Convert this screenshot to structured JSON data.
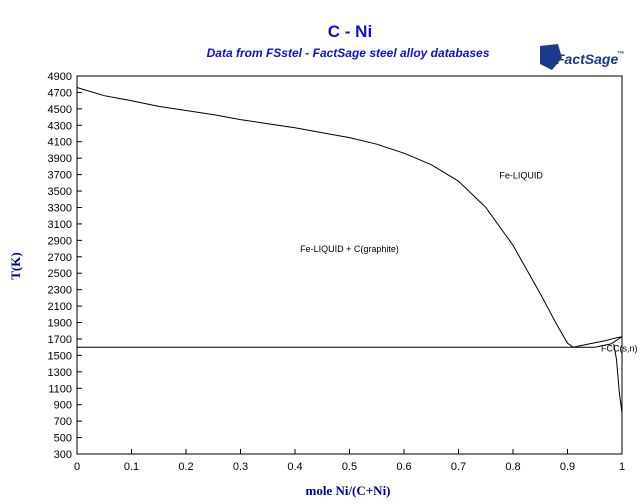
{
  "header": {
    "title": "C - Ni",
    "subtitle": "Data from FSstel - FactSage steel alloy databases",
    "logo": "FactSage",
    "logo_mark": "™"
  },
  "colors": {
    "title": "#1010d0",
    "axis_label": "#0000a0",
    "logo": "#1a3a8c",
    "line": "#000000"
  },
  "chart_data": {
    "type": "line",
    "title": "C - Ni",
    "subtitle": "Data from FSstel - FactSage steel alloy databases",
    "xlabel": "mole Ni/(C+Ni)",
    "ylabel": "T(K)",
    "xlim": [
      0,
      1
    ],
    "ylim": [
      300,
      4900
    ],
    "xticks": [
      0,
      0.1,
      0.2,
      0.3,
      0.4,
      0.5,
      0.6,
      0.7,
      0.8,
      0.9,
      1
    ],
    "xtick_labels": [
      "0",
      "0.1",
      "0.2",
      "0.3",
      "0.4",
      "0.5",
      "0.6",
      "0.7",
      "0.8",
      "0.9",
      "1"
    ],
    "yticks": [
      300,
      500,
      700,
      900,
      1100,
      1300,
      1500,
      1700,
      1900,
      2100,
      2300,
      2500,
      2700,
      2900,
      3100,
      3300,
      3500,
      3700,
      3900,
      4100,
      4300,
      4500,
      4700,
      4900
    ],
    "grid": false,
    "series": [
      {
        "x": [
          0,
          0.05,
          0.1,
          0.15,
          0.2,
          0.25,
          0.3,
          0.35,
          0.4,
          0.45,
          0.5,
          0.55,
          0.6,
          0.65,
          0.7,
          0.75,
          0.8,
          0.85,
          0.88,
          0.9,
          0.91
        ],
        "y": [
          4760,
          4660,
          4600,
          4530,
          4480,
          4430,
          4370,
          4320,
          4270,
          4210,
          4150,
          4070,
          3960,
          3820,
          3620,
          3300,
          2840,
          2250,
          1880,
          1650,
          1600
        ]
      },
      {
        "x": [
          0,
          0.91
        ],
        "y": [
          1600,
          1600
        ]
      },
      {
        "x": [
          0.91,
          0.94,
          0.97,
          0.99,
          1.0
        ],
        "y": [
          1600,
          1640,
          1680,
          1715,
          1728
        ]
      },
      {
        "x": [
          0.91,
          0.95,
          0.98,
          1.0
        ],
        "y": [
          1600,
          1600,
          1640,
          1728
        ]
      },
      {
        "x": [
          0.985,
          0.99,
          0.995,
          1.0
        ],
        "y": [
          1640,
          1450,
          1050,
          800
        ]
      }
    ],
    "annotations": [
      {
        "text": "Fe-LIQUID",
        "x": 0.815,
        "y": 3650
      },
      {
        "text": "Fe-LIQUID + C(graphite)",
        "x": 0.5,
        "y": 2760
      },
      {
        "text": "FCC(s,n)",
        "x": 0.995,
        "y": 1550
      }
    ]
  }
}
